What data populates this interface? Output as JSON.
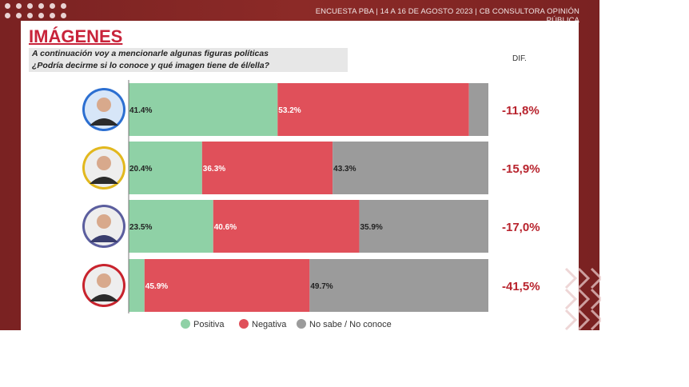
{
  "header": {
    "source": "ENCUESTA PBA | 14 A 16 DE AGOSTO 2023 | CB CONSULTORA OPINIÓN PÚBLICA"
  },
  "page": {
    "title": "IMÁGENES",
    "question_line1": "A continuación voy a mencionarle algunas figuras políticas",
    "question_line2": "¿Podría decirme si lo conoce y qué imagen tiene de él/ella?",
    "dif_label": "DIF."
  },
  "colors": {
    "frame": "#8c2a27",
    "positiva": "#8fd1a6",
    "negativa": "#e0505a",
    "no_sabe": "#9b9b9b",
    "dif_text": "#b8232d",
    "title": "#c8233a"
  },
  "chart_data": {
    "type": "bar",
    "orientation": "horizontal",
    "stacked": true,
    "categories": [
      "",
      "",
      "",
      ""
    ],
    "series": [
      {
        "name": "Positiva",
        "values": [
          41.4,
          20.4,
          23.5,
          4.4
        ]
      },
      {
        "name": "Negativa",
        "values": [
          53.2,
          36.3,
          40.6,
          45.9
        ]
      },
      {
        "name": "No sabe / No conoce",
        "values": [
          5.4,
          43.3,
          35.9,
          49.7
        ]
      }
    ],
    "data_labels": [
      [
        "41.4%",
        "53.2%",
        ""
      ],
      [
        "20.4%",
        "36.3%",
        "43.3%"
      ],
      [
        "23.5%",
        "40.6%",
        "35.9%"
      ],
      [
        "",
        "45.9%",
        "49.7%"
      ]
    ],
    "dif": [
      "-11,8%",
      "-15,9%",
      "-17,0%",
      "-41,5%"
    ],
    "xlim": [
      0,
      100
    ],
    "legend": [
      "Positiva",
      "Negativa",
      "No sabe / No conoce"
    ],
    "legend_position": "bottom",
    "avatar_ring_colors": [
      "#2c6fd1",
      "#e2b81e",
      "#5b5e9e",
      "#c8232d"
    ]
  }
}
